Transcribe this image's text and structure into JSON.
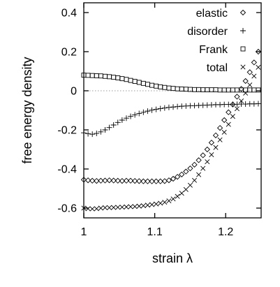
{
  "chart_data": {
    "type": "scatter",
    "title": "",
    "xlabel": "strain λ",
    "ylabel": "free energy density",
    "xlim": [
      1.0,
      1.25
    ],
    "ylim": [
      -0.65,
      0.45
    ],
    "xticks": [
      1.0,
      1.1,
      1.2
    ],
    "xtick_labels": [
      "1",
      "1.1",
      "1.2"
    ],
    "yticks": [
      -0.6,
      -0.4,
      -0.2,
      0.0,
      0.2,
      0.4
    ],
    "ytick_labels": [
      "-0.6",
      "-0.4",
      "-0.2",
      "0",
      "0.2",
      "0.4"
    ],
    "zero_line": true,
    "grid": false,
    "legend_position": "top-right",
    "series": [
      {
        "name": "elastic",
        "marker": "diamond",
        "points": [
          [
            1.0,
            -0.455
          ],
          [
            1.006,
            -0.458
          ],
          [
            1.012,
            -0.46
          ],
          [
            1.018,
            -0.461
          ],
          [
            1.024,
            -0.46
          ],
          [
            1.03,
            -0.459
          ],
          [
            1.036,
            -0.458
          ],
          [
            1.042,
            -0.459
          ],
          [
            1.048,
            -0.46
          ],
          [
            1.054,
            -0.461
          ],
          [
            1.06,
            -0.46
          ],
          [
            1.066,
            -0.46
          ],
          [
            1.072,
            -0.461
          ],
          [
            1.078,
            -0.462
          ],
          [
            1.084,
            -0.463
          ],
          [
            1.09,
            -0.463
          ],
          [
            1.096,
            -0.463
          ],
          [
            1.102,
            -0.463
          ],
          [
            1.108,
            -0.463
          ],
          [
            1.114,
            -0.462
          ],
          [
            1.12,
            -0.458
          ],
          [
            1.126,
            -0.45
          ],
          [
            1.132,
            -0.44
          ],
          [
            1.138,
            -0.428
          ],
          [
            1.144,
            -0.413
          ],
          [
            1.15,
            -0.397
          ],
          [
            1.156,
            -0.378
          ],
          [
            1.162,
            -0.355
          ],
          [
            1.168,
            -0.33
          ],
          [
            1.174,
            -0.3
          ],
          [
            1.18,
            -0.265
          ],
          [
            1.186,
            -0.228
          ],
          [
            1.192,
            -0.19
          ],
          [
            1.198,
            -0.15
          ],
          [
            1.204,
            -0.11
          ],
          [
            1.21,
            -0.07
          ],
          [
            1.216,
            -0.03
          ],
          [
            1.222,
            0.01
          ],
          [
            1.228,
            0.05
          ],
          [
            1.234,
            0.095
          ],
          [
            1.24,
            0.145
          ],
          [
            1.246,
            0.2
          ]
        ]
      },
      {
        "name": "disorder",
        "marker": "plus",
        "points": [
          [
            1.0,
            -0.215
          ],
          [
            1.006,
            -0.22
          ],
          [
            1.012,
            -0.222
          ],
          [
            1.018,
            -0.218
          ],
          [
            1.024,
            -0.21
          ],
          [
            1.03,
            -0.2
          ],
          [
            1.036,
            -0.188
          ],
          [
            1.042,
            -0.175
          ],
          [
            1.048,
            -0.162
          ],
          [
            1.054,
            -0.15
          ],
          [
            1.06,
            -0.14
          ],
          [
            1.066,
            -0.131
          ],
          [
            1.072,
            -0.123
          ],
          [
            1.078,
            -0.116
          ],
          [
            1.084,
            -0.11
          ],
          [
            1.09,
            -0.104
          ],
          [
            1.096,
            -0.099
          ],
          [
            1.102,
            -0.095
          ],
          [
            1.108,
            -0.091
          ],
          [
            1.114,
            -0.088
          ],
          [
            1.12,
            -0.085
          ],
          [
            1.126,
            -0.083
          ],
          [
            1.132,
            -0.081
          ],
          [
            1.138,
            -0.079
          ],
          [
            1.144,
            -0.078
          ],
          [
            1.15,
            -0.077
          ],
          [
            1.156,
            -0.076
          ],
          [
            1.162,
            -0.075
          ],
          [
            1.168,
            -0.074
          ],
          [
            1.174,
            -0.073
          ],
          [
            1.18,
            -0.072
          ],
          [
            1.186,
            -0.071
          ],
          [
            1.192,
            -0.071
          ],
          [
            1.198,
            -0.07
          ],
          [
            1.204,
            -0.07
          ],
          [
            1.21,
            -0.069
          ],
          [
            1.216,
            -0.069
          ],
          [
            1.222,
            -0.068
          ],
          [
            1.228,
            -0.068
          ],
          [
            1.234,
            -0.067
          ],
          [
            1.24,
            -0.067
          ],
          [
            1.246,
            -0.066
          ]
        ]
      },
      {
        "name": "Frank",
        "marker": "square",
        "points": [
          [
            1.0,
            0.08
          ],
          [
            1.006,
            0.079
          ],
          [
            1.012,
            0.078
          ],
          [
            1.018,
            0.077
          ],
          [
            1.024,
            0.076
          ],
          [
            1.03,
            0.074
          ],
          [
            1.036,
            0.072
          ],
          [
            1.042,
            0.069
          ],
          [
            1.048,
            0.066
          ],
          [
            1.054,
            0.062
          ],
          [
            1.06,
            0.058
          ],
          [
            1.066,
            0.053
          ],
          [
            1.072,
            0.048
          ],
          [
            1.078,
            0.043
          ],
          [
            1.084,
            0.038
          ],
          [
            1.09,
            0.033
          ],
          [
            1.096,
            0.028
          ],
          [
            1.102,
            0.024
          ],
          [
            1.108,
            0.02
          ],
          [
            1.114,
            0.017
          ],
          [
            1.12,
            0.014
          ],
          [
            1.126,
            0.012
          ],
          [
            1.132,
            0.01
          ],
          [
            1.138,
            0.009
          ],
          [
            1.144,
            0.008
          ],
          [
            1.15,
            0.007
          ],
          [
            1.156,
            0.006
          ],
          [
            1.162,
            0.006
          ],
          [
            1.168,
            0.005
          ],
          [
            1.174,
            0.005
          ],
          [
            1.18,
            0.005
          ],
          [
            1.186,
            0.005
          ],
          [
            1.192,
            0.004
          ],
          [
            1.198,
            0.004
          ],
          [
            1.204,
            0.004
          ],
          [
            1.21,
            0.004
          ],
          [
            1.216,
            0.004
          ],
          [
            1.222,
            0.004
          ],
          [
            1.228,
            0.004
          ],
          [
            1.234,
            0.004
          ],
          [
            1.24,
            0.004
          ],
          [
            1.246,
            0.004
          ]
        ]
      },
      {
        "name": "total",
        "marker": "cross",
        "points": [
          [
            1.0,
            -0.6
          ],
          [
            1.006,
            -0.603
          ],
          [
            1.012,
            -0.604
          ],
          [
            1.018,
            -0.603
          ],
          [
            1.024,
            -0.6
          ],
          [
            1.03,
            -0.598
          ],
          [
            1.036,
            -0.598
          ],
          [
            1.042,
            -0.597
          ],
          [
            1.048,
            -0.596
          ],
          [
            1.054,
            -0.595
          ],
          [
            1.06,
            -0.594
          ],
          [
            1.066,
            -0.593
          ],
          [
            1.072,
            -0.592
          ],
          [
            1.078,
            -0.59
          ],
          [
            1.084,
            -0.588
          ],
          [
            1.09,
            -0.585
          ],
          [
            1.096,
            -0.582
          ],
          [
            1.102,
            -0.579
          ],
          [
            1.108,
            -0.575
          ],
          [
            1.114,
            -0.57
          ],
          [
            1.12,
            -0.563
          ],
          [
            1.126,
            -0.553
          ],
          [
            1.132,
            -0.54
          ],
          [
            1.138,
            -0.524
          ],
          [
            1.144,
            -0.505
          ],
          [
            1.15,
            -0.483
          ],
          [
            1.156,
            -0.458
          ],
          [
            1.162,
            -0.429
          ],
          [
            1.168,
            -0.397
          ],
          [
            1.174,
            -0.363
          ],
          [
            1.18,
            -0.327
          ],
          [
            1.186,
            -0.29
          ],
          [
            1.192,
            -0.251
          ],
          [
            1.198,
            -0.212
          ],
          [
            1.204,
            -0.172
          ],
          [
            1.21,
            -0.131
          ],
          [
            1.216,
            -0.092
          ],
          [
            1.222,
            -0.052
          ],
          [
            1.228,
            -0.012
          ],
          [
            1.234,
            0.03
          ],
          [
            1.24,
            0.075
          ],
          [
            1.246,
            0.12
          ]
        ]
      }
    ]
  }
}
